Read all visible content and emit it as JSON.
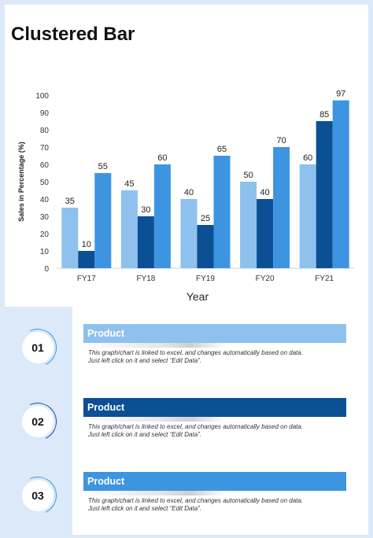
{
  "title": "Clustered Bar",
  "colors": {
    "frame": "#dbe9f8",
    "series_light": "#8ec1ee",
    "series_dark": "#0b4f94",
    "series_mid": "#3d95e2"
  },
  "chart_data": {
    "type": "bar",
    "categories": [
      "FY17",
      "FY18",
      "FY19",
      "FY20",
      "FY21"
    ],
    "series": [
      {
        "values": [
          35,
          45,
          40,
          50,
          60
        ]
      },
      {
        "values": [
          10,
          30,
          25,
          40,
          85
        ]
      },
      {
        "values": [
          55,
          60,
          65,
          70,
          97
        ]
      }
    ],
    "xlabel": "Year",
    "ylabel": "Sales in Percentage (%)",
    "ylim": [
      0,
      100
    ],
    "yticks": [
      0,
      10,
      20,
      30,
      40,
      50,
      60,
      70,
      80,
      90,
      100
    ],
    "grid": false,
    "legend": "none"
  },
  "items": [
    {
      "number": "01",
      "label": "Product",
      "desc1": "This graph/chart  is linked to excel,  and changes automatically  based on data.",
      "desc2": "Just left click on it and select “Edit Data”."
    },
    {
      "number": "02",
      "label": "Product",
      "desc1": "This graph/chart  is linked to excel,  and changes automatically  based on data.",
      "desc2": "Just left click on it and select “Edit Data”."
    },
    {
      "number": "03",
      "label": "Product",
      "desc1": "This graph/chart  is linked to excel,  and changes automatically  based on data.",
      "desc2": "Just left click on it and select “Edit Data”."
    }
  ]
}
